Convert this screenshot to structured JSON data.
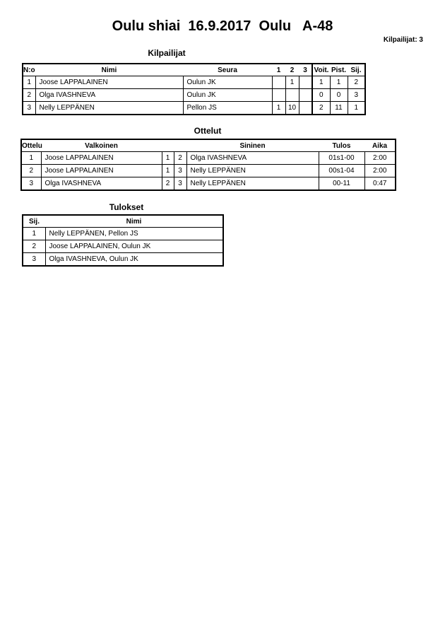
{
  "title": "Oulu shiai  16.9.2017  Oulu   A-48",
  "competitor_count": "Kilpailijat: 3",
  "competitors": {
    "heading": "Kilpailijat",
    "columns": [
      "N:o",
      "Nimi",
      "Seura",
      "1",
      "2",
      "3",
      "Voit.",
      "Pist.",
      "Sij."
    ],
    "rows": [
      [
        "1",
        "Joose LAPPALAINEN",
        "Oulun JK",
        "",
        "1",
        "",
        "1",
        "1",
        "2"
      ],
      [
        "2",
        "Olga IVASHNEVA",
        "Oulun JK",
        "",
        "",
        "",
        "0",
        "0",
        "3"
      ],
      [
        "3",
        "Nelly LEPPÄNEN",
        "Pellon JS",
        "1",
        "10",
        "",
        "2",
        "11",
        "1"
      ]
    ]
  },
  "matches": {
    "heading": "Ottelut",
    "columns": [
      "Ottelu",
      "Valkoinen",
      "",
      "",
      "Sininen",
      "Tulos",
      "Aika"
    ],
    "rows": [
      [
        "1",
        "Joose LAPPALAINEN",
        "1",
        "2",
        "Olga IVASHNEVA",
        "01s1-00",
        "2:00"
      ],
      [
        "2",
        "Joose LAPPALAINEN",
        "1",
        "3",
        "Nelly LEPPÄNEN",
        "00s1-04",
        "2:00"
      ],
      [
        "3",
        "Olga IVASHNEVA",
        "2",
        "3",
        "Nelly LEPPÄNEN",
        "00-11",
        "0:47"
      ]
    ]
  },
  "results": {
    "heading": "Tulokset",
    "columns": [
      "Sij.",
      "Nimi"
    ],
    "rows": [
      [
        "1",
        "Nelly LEPPÄNEN, Pellon JS"
      ],
      [
        "2",
        "Joose LAPPALAINEN, Oulun JK"
      ],
      [
        "3",
        "Olga IVASHNEVA, Oulun JK"
      ]
    ]
  }
}
